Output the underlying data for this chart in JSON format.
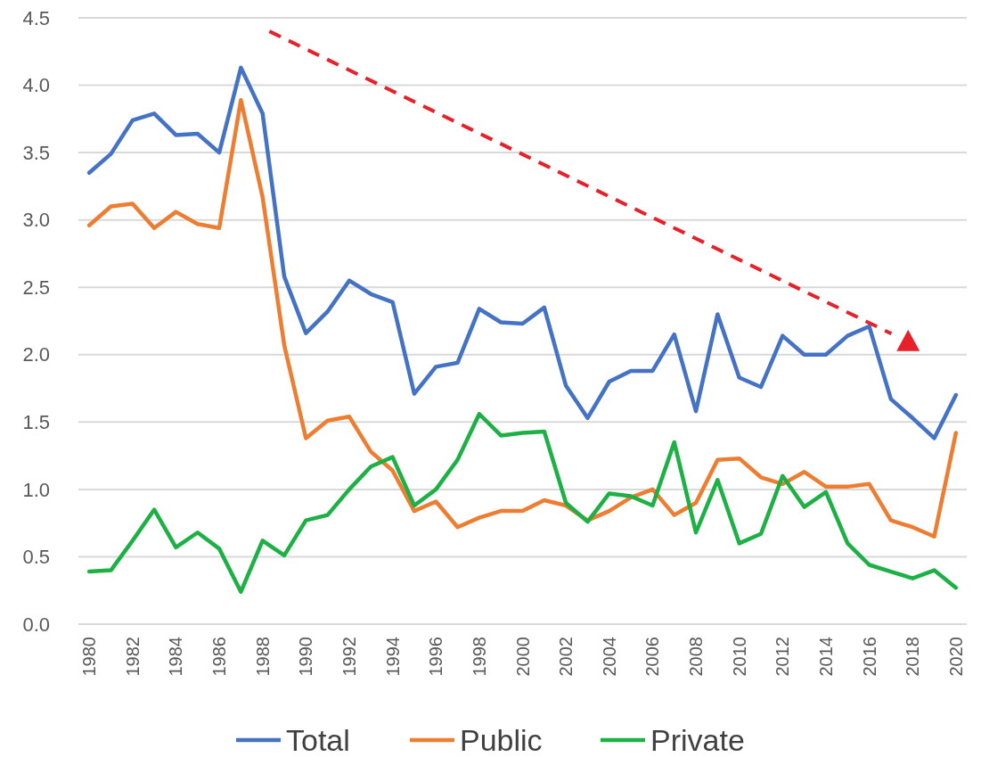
{
  "chart_data": {
    "type": "line",
    "categories": [
      "1980",
      null,
      "1982",
      null,
      "1984",
      null,
      "1986",
      null,
      "1988",
      null,
      "1990",
      null,
      "1992",
      null,
      "1994",
      null,
      "1996",
      null,
      "1998",
      null,
      "2000",
      null,
      "2002",
      null,
      "2004",
      null,
      "2006",
      null,
      "2008",
      null,
      "2010",
      null,
      "2012",
      null,
      "2014",
      null,
      "2016",
      null,
      "2018",
      null,
      "2020"
    ],
    "series": [
      {
        "name": "Total",
        "color": "#4472c4",
        "values": [
          3.35,
          3.49,
          3.74,
          3.79,
          3.63,
          3.64,
          3.5,
          4.13,
          3.79,
          2.58,
          2.16,
          2.32,
          2.55,
          2.45,
          2.39,
          1.71,
          1.91,
          1.94,
          2.34,
          2.24,
          2.23,
          2.35,
          1.77,
          1.53,
          1.8,
          1.88,
          1.88,
          2.15,
          1.58,
          2.3,
          1.83,
          1.76,
          2.14,
          2.0,
          2.0,
          2.14,
          2.21,
          1.67,
          1.53,
          1.38,
          1.7
        ]
      },
      {
        "name": "Public",
        "color": "#ed7d31",
        "values": [
          2.96,
          3.1,
          3.12,
          2.94,
          3.06,
          2.97,
          2.94,
          3.89,
          3.17,
          2.07,
          1.38,
          1.51,
          1.54,
          1.28,
          1.14,
          0.84,
          0.91,
          0.72,
          0.79,
          0.84,
          0.84,
          0.92,
          0.88,
          0.77,
          0.84,
          0.94,
          1.0,
          0.81,
          0.9,
          1.22,
          1.23,
          1.09,
          1.04,
          1.13,
          1.02,
          1.02,
          1.04,
          0.77,
          0.72,
          0.65,
          1.42
        ]
      },
      {
        "name": "Private",
        "color": "#1db045",
        "values": [
          0.39,
          0.4,
          0.62,
          0.85,
          0.57,
          0.68,
          0.56,
          0.24,
          0.62,
          0.51,
          0.77,
          0.81,
          1.0,
          1.17,
          1.24,
          0.88,
          1.0,
          1.22,
          1.56,
          1.4,
          1.42,
          1.43,
          0.9,
          0.76,
          0.97,
          0.95,
          0.88,
          1.35,
          0.68,
          1.07,
          0.6,
          0.67,
          1.1,
          0.87,
          0.98,
          0.6,
          0.44,
          0.39,
          0.34,
          0.4,
          0.27
        ]
      }
    ],
    "ylim": [
      0,
      4.5
    ],
    "yticks": [
      {
        "value": 0,
        "label": "0.0"
      },
      {
        "value": 0.5,
        "label": "0.5"
      },
      {
        "value": 1,
        "label": "1.0"
      },
      {
        "value": 1.5,
        "label": "1.5"
      },
      {
        "value": 2,
        "label": "2.0"
      },
      {
        "value": 2.5,
        "label": "2.5"
      },
      {
        "value": 3,
        "label": "3.0"
      },
      {
        "value": 3.5,
        "label": "3.5"
      },
      {
        "value": 4,
        "label": "4.0"
      },
      {
        "value": 4.5,
        "label": "4.5"
      }
    ],
    "grid": "y",
    "legend": "bottom",
    "marker": "none",
    "line_style": "solid"
  }
}
